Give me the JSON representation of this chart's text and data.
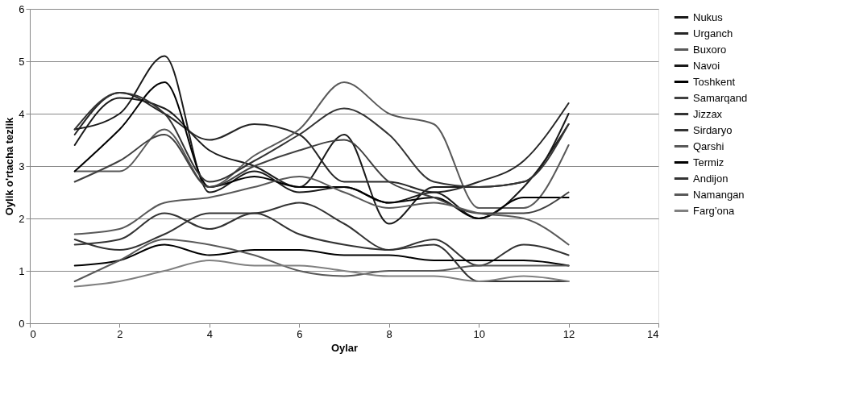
{
  "chart_data": {
    "type": "line",
    "xlabel": "Oylar",
    "ylabel": "Oylik o'rtacha tezlik",
    "x": [
      1,
      2,
      3,
      4,
      5,
      6,
      7,
      8,
      9,
      10,
      11,
      12
    ],
    "xlim": [
      0,
      14
    ],
    "xticks": [
      0,
      2,
      4,
      6,
      8,
      10,
      12,
      14
    ],
    "ylim": [
      0,
      6
    ],
    "yticks": [
      0,
      1,
      2,
      3,
      4,
      5,
      6
    ],
    "grid": "y",
    "legend": "right",
    "marker": "none",
    "line_style": "solid",
    "series": [
      {
        "name": "Nukus",
        "color": "#1a1a1a",
        "values": [
          3.4,
          4.3,
          4.1,
          3.3,
          3.0,
          2.6,
          3.6,
          1.9,
          2.6,
          2.6,
          2.7,
          4.0
        ]
      },
      {
        "name": "Urganch",
        "color": "#262626",
        "values": [
          3.6,
          4.4,
          4.0,
          3.5,
          3.8,
          3.6,
          2.7,
          2.7,
          2.5,
          2.7,
          3.1,
          4.2
        ]
      },
      {
        "name": "Buxoro",
        "color": "#595959",
        "values": [
          2.9,
          2.9,
          3.7,
          2.6,
          3.2,
          3.7,
          4.6,
          4.0,
          3.8,
          2.2,
          2.2,
          3.4
        ]
      },
      {
        "name": "Navoi",
        "color": "#1a1a1a",
        "values": [
          3.7,
          4.0,
          5.1,
          2.5,
          2.9,
          2.5,
          2.6,
          2.3,
          2.5,
          2.0,
          2.6,
          3.8
        ]
      },
      {
        "name": "Toshkent",
        "color": "#000000",
        "values": [
          2.9,
          3.7,
          4.6,
          2.6,
          2.8,
          2.6,
          2.6,
          2.3,
          2.4,
          2.0,
          2.4,
          2.4
        ]
      },
      {
        "name": "Samarqand",
        "color": "#404040",
        "values": [
          2.7,
          3.1,
          3.6,
          2.6,
          3.0,
          3.3,
          3.5,
          2.7,
          2.4,
          2.1,
          2.1,
          2.5
        ]
      },
      {
        "name": "Jizzax",
        "color": "#333333",
        "values": [
          3.7,
          4.4,
          4.0,
          2.7,
          3.1,
          3.6,
          4.1,
          3.6,
          2.7,
          2.6,
          2.7,
          3.8
        ]
      },
      {
        "name": "Sirdaryo",
        "color": "#333333",
        "values": [
          1.5,
          1.6,
          2.1,
          1.8,
          2.1,
          1.7,
          1.5,
          1.4,
          1.6,
          1.1,
          1.5,
          1.3
        ]
      },
      {
        "name": "Qarshi",
        "color": "#595959",
        "values": [
          1.7,
          1.8,
          2.3,
          2.4,
          2.6,
          2.8,
          2.5,
          2.2,
          2.3,
          2.1,
          2.0,
          1.5
        ]
      },
      {
        "name": "Termiz",
        "color": "#000000",
        "values": [
          1.1,
          1.2,
          1.5,
          1.3,
          1.4,
          1.4,
          1.3,
          1.3,
          1.2,
          1.2,
          1.2,
          1.1
        ]
      },
      {
        "name": "Andijon",
        "color": "#333333",
        "values": [
          1.6,
          1.4,
          1.7,
          2.1,
          2.1,
          2.3,
          1.9,
          1.4,
          1.5,
          0.8,
          0.8,
          0.8
        ]
      },
      {
        "name": "Namangan",
        "color": "#595959",
        "values": [
          0.8,
          1.2,
          1.6,
          1.5,
          1.3,
          1.0,
          0.9,
          1.0,
          1.0,
          1.1,
          1.1,
          1.1
        ]
      },
      {
        "name": "Farg’ona",
        "color": "#808080",
        "values": [
          0.7,
          0.8,
          1.0,
          1.2,
          1.1,
          1.1,
          1.0,
          0.9,
          0.9,
          0.8,
          0.9,
          0.8
        ]
      }
    ]
  }
}
